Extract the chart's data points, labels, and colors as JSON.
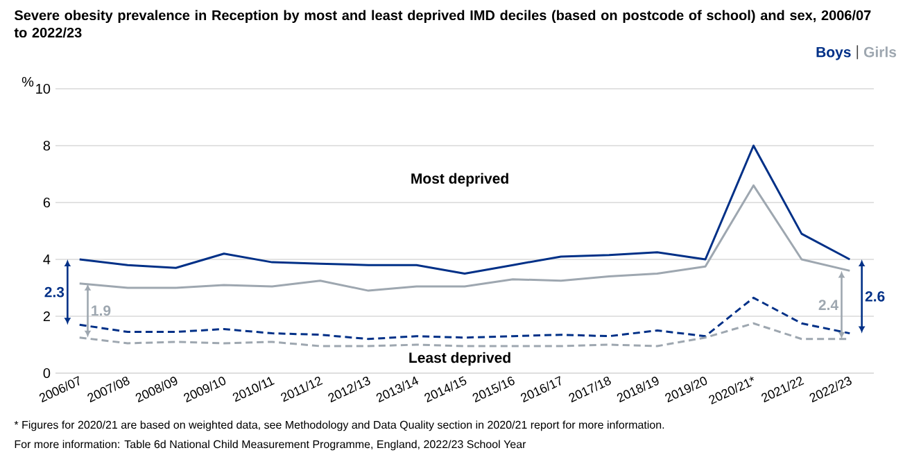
{
  "chart_data": {
    "type": "line",
    "title": "Severe obesity prevalence in Reception by most and least deprived IMD deciles (based on postcode of school) and sex, 2006/07 to 2022/23",
    "ylabel": "%",
    "categories": [
      "2006/07",
      "2007/08",
      "2008/09",
      "2009/10",
      "2010/11",
      "2011/12",
      "2012/13",
      "2013/14",
      "2014/15",
      "2015/16",
      "2016/17",
      "2017/18",
      "2018/19",
      "2019/20",
      "2020/21*",
      "2021/22",
      "2022/23"
    ],
    "series": [
      {
        "name": "Boys",
        "color": "#003087",
        "line_style": "solid",
        "values": [
          4.0,
          3.8,
          3.7,
          4.2,
          3.9,
          3.85,
          3.8,
          3.8,
          3.5,
          3.8,
          4.1,
          4.15,
          4.25,
          4.0,
          8.0,
          4.9,
          4.0
        ]
      },
      {
        "name": "Girls",
        "color": "#9ea7b0",
        "line_style": "solid",
        "values": [
          3.15,
          3.0,
          3.0,
          3.1,
          3.05,
          3.25,
          2.9,
          3.05,
          3.05,
          3.3,
          3.25,
          3.4,
          3.5,
          3.75,
          6.6,
          4.0,
          3.6
        ]
      },
      {
        "color": "#003087",
        "line_style": "dashed",
        "values": [
          1.7,
          1.45,
          1.45,
          1.55,
          1.4,
          1.35,
          1.2,
          1.3,
          1.25,
          1.3,
          1.35,
          1.3,
          1.5,
          1.3,
          2.65,
          1.75,
          1.4
        ]
      },
      {
        "color": "#9ea7b0",
        "line_style": "dashed",
        "values": [
          1.25,
          1.05,
          1.1,
          1.05,
          1.1,
          0.95,
          0.95,
          1.0,
          0.95,
          0.95,
          0.95,
          1.0,
          0.95,
          1.25,
          1.75,
          1.2,
          1.2
        ]
      }
    ],
    "ylim": [
      0,
      10
    ],
    "yticks": [
      0,
      2,
      4,
      6,
      8,
      10
    ],
    "grid": "y",
    "legend": "top right",
    "marker": "none",
    "annotations": [
      "Most deprived",
      "Least deprived",
      "2.3",
      "1.9",
      "2.4",
      "2.6",
      "* Figures for 2020/21 are based on weighted data, see Methodology and Data Quality section in 2020/21 report for more information.",
      "For more information: Table 6d National Child Measurement Programme, England, 2022/23 School Year"
    ]
  }
}
